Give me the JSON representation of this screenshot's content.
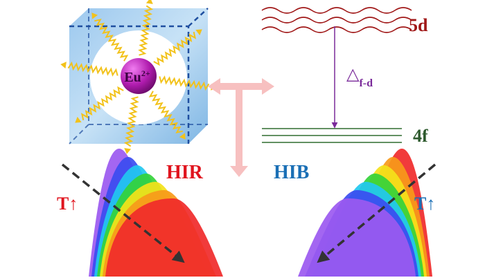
{
  "crystal": {
    "ion": "Eu",
    "charge": "2+"
  },
  "levels": {
    "upper": "5d",
    "lower": "4f",
    "gap_symbol": "△",
    "gap_subscript": "f-d"
  },
  "panels": [
    {
      "label": "HIR",
      "temperature": "T↑"
    },
    {
      "label": "HIB",
      "temperature": "T↑"
    }
  ]
}
